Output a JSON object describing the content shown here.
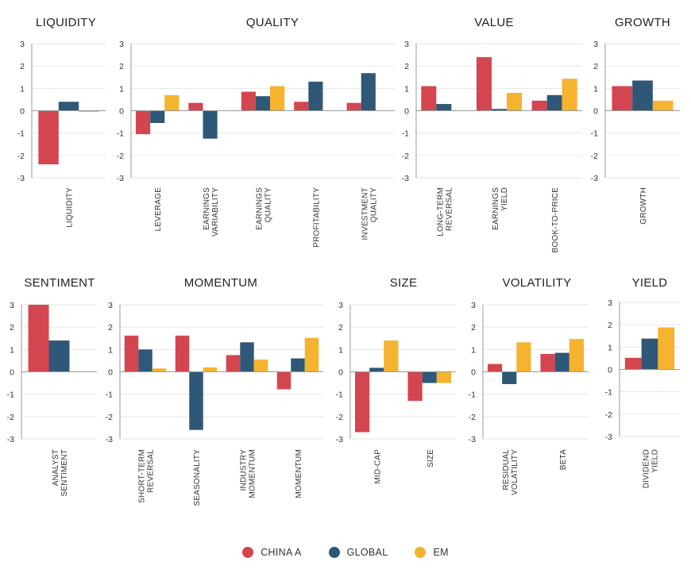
{
  "colors": {
    "china_a": "#d4464f",
    "global": "#2f5878",
    "em": "#f5b32f"
  },
  "legend": [
    {
      "key": "china_a",
      "label": "CHINA A"
    },
    {
      "key": "global",
      "label": "GLOBAL"
    },
    {
      "key": "em",
      "label": "EM"
    }
  ],
  "chart_data": [
    {
      "type": "bar",
      "title": "LIQUIDITY",
      "ylim": [
        -3,
        3
      ],
      "yticks": [
        3,
        2,
        1,
        0,
        -1,
        -2,
        -3
      ],
      "categories": [
        [
          "LIQUIDITY"
        ]
      ],
      "series": [
        {
          "name": "CHINA A",
          "values": [
            -2.4
          ]
        },
        {
          "name": "GLOBAL",
          "values": [
            0.4
          ]
        },
        {
          "name": "EM",
          "values": [
            -0.05
          ]
        }
      ]
    },
    {
      "type": "bar",
      "title": "QUALITY",
      "ylim": [
        -3,
        3
      ],
      "yticks": [
        3,
        2,
        1,
        0,
        -1,
        -2,
        -3
      ],
      "categories": [
        [
          "LEVERAGE"
        ],
        [
          "EARNINGS",
          "VARIABILITY"
        ],
        [
          "EARNINGS",
          "QUALITY"
        ],
        [
          "PROFITABILITY"
        ],
        [
          "INVESTMENT",
          "QUALITY"
        ]
      ],
      "series": [
        {
          "name": "CHINA A",
          "values": [
            -1.05,
            0.35,
            0.85,
            0.4,
            0.35
          ]
        },
        {
          "name": "GLOBAL",
          "values": [
            -0.55,
            -1.25,
            0.65,
            1.3,
            1.68
          ]
        },
        {
          "name": "EM",
          "values": [
            0.7,
            0,
            1.1,
            0,
            0
          ]
        }
      ]
    },
    {
      "type": "bar",
      "title": "VALUE",
      "ylim": [
        -3,
        3
      ],
      "yticks": [
        3,
        2,
        1,
        0,
        -1,
        -2,
        -3
      ],
      "categories": [
        [
          "LONG-TERM",
          "REVERSAL"
        ],
        [
          "EARNINGS",
          "YIELD"
        ],
        [
          "BOOK-TO-PRICE"
        ]
      ],
      "series": [
        {
          "name": "CHINA A",
          "values": [
            1.1,
            2.4,
            0.45
          ]
        },
        {
          "name": "GLOBAL",
          "values": [
            0.3,
            0.08,
            0.7
          ]
        },
        {
          "name": "EM",
          "values": [
            0,
            0.8,
            1.43
          ]
        }
      ]
    },
    {
      "type": "bar",
      "title": "GROWTH",
      "ylim": [
        -3,
        3
      ],
      "yticks": [
        3,
        2,
        1,
        0,
        -1,
        -2,
        -3
      ],
      "categories": [
        [
          "GROWTH"
        ]
      ],
      "series": [
        {
          "name": "CHINA A",
          "values": [
            1.1
          ]
        },
        {
          "name": "GLOBAL",
          "values": [
            1.35
          ]
        },
        {
          "name": "EM",
          "values": [
            0.45
          ]
        }
      ]
    },
    {
      "type": "bar",
      "title": "SENTIMENT",
      "ylim": [
        -3,
        3
      ],
      "yticks": [
        3,
        2,
        1,
        0,
        -1,
        -2,
        -3
      ],
      "categories": [
        [
          "ANALYST",
          "SENTIMENT"
        ]
      ],
      "series": [
        {
          "name": "CHINA A",
          "values": [
            3.0
          ]
        },
        {
          "name": "GLOBAL",
          "values": [
            1.4
          ]
        },
        {
          "name": "EM",
          "values": [
            0
          ]
        }
      ]
    },
    {
      "type": "bar",
      "title": "MOMENTUM",
      "ylim": [
        -3,
        3
      ],
      "yticks": [
        3,
        2,
        1,
        0,
        -1,
        -2,
        -3
      ],
      "categories": [
        [
          "SHORT-TERM",
          "REVERSAL"
        ],
        [
          "SEASONALITY"
        ],
        [
          "INDUSTRY",
          "MOMENTUM"
        ],
        [
          "MOMENTUM"
        ]
      ],
      "series": [
        {
          "name": "CHINA A",
          "values": [
            1.62,
            1.62,
            0.75,
            -0.78
          ]
        },
        {
          "name": "GLOBAL",
          "values": [
            1.0,
            -2.6,
            1.32,
            0.6
          ]
        },
        {
          "name": "EM",
          "values": [
            0.15,
            0.2,
            0.55,
            1.52
          ]
        }
      ]
    },
    {
      "type": "bar",
      "title": "SIZE",
      "ylim": [
        -3,
        3
      ],
      "yticks": [
        3,
        2,
        1,
        0,
        -1,
        -2,
        -3
      ],
      "categories": [
        [
          "MID-CAP"
        ],
        [
          "SIZE"
        ]
      ],
      "series": [
        {
          "name": "CHINA A",
          "values": [
            -2.7,
            -1.3
          ]
        },
        {
          "name": "GLOBAL",
          "values": [
            0.18,
            -0.5
          ]
        },
        {
          "name": "EM",
          "values": [
            1.4,
            -0.5
          ]
        }
      ]
    },
    {
      "type": "bar",
      "title": "VOLATILITY",
      "ylim": [
        -3,
        3
      ],
      "yticks": [
        3,
        2,
        1,
        0,
        -1,
        -2,
        -3
      ],
      "categories": [
        [
          "RESIDUAL",
          "VOLATILITY"
        ],
        [
          "BETA"
        ]
      ],
      "series": [
        {
          "name": "CHINA A",
          "values": [
            0.35,
            0.8
          ]
        },
        {
          "name": "GLOBAL",
          "values": [
            -0.55,
            0.85
          ]
        },
        {
          "name": "EM",
          "values": [
            1.32,
            1.47
          ]
        }
      ]
    },
    {
      "type": "bar",
      "title": "YIELD",
      "ylim": [
        -3,
        3
      ],
      "yticks": [
        3,
        2,
        1,
        0,
        -1,
        -2,
        -3
      ],
      "categories": [
        [
          "DIVIDEND",
          "YIELD"
        ]
      ],
      "series": [
        {
          "name": "CHINA A",
          "values": [
            0.52
          ]
        },
        {
          "name": "GLOBAL",
          "values": [
            1.38
          ]
        },
        {
          "name": "EM",
          "values": [
            1.88
          ]
        }
      ]
    }
  ]
}
